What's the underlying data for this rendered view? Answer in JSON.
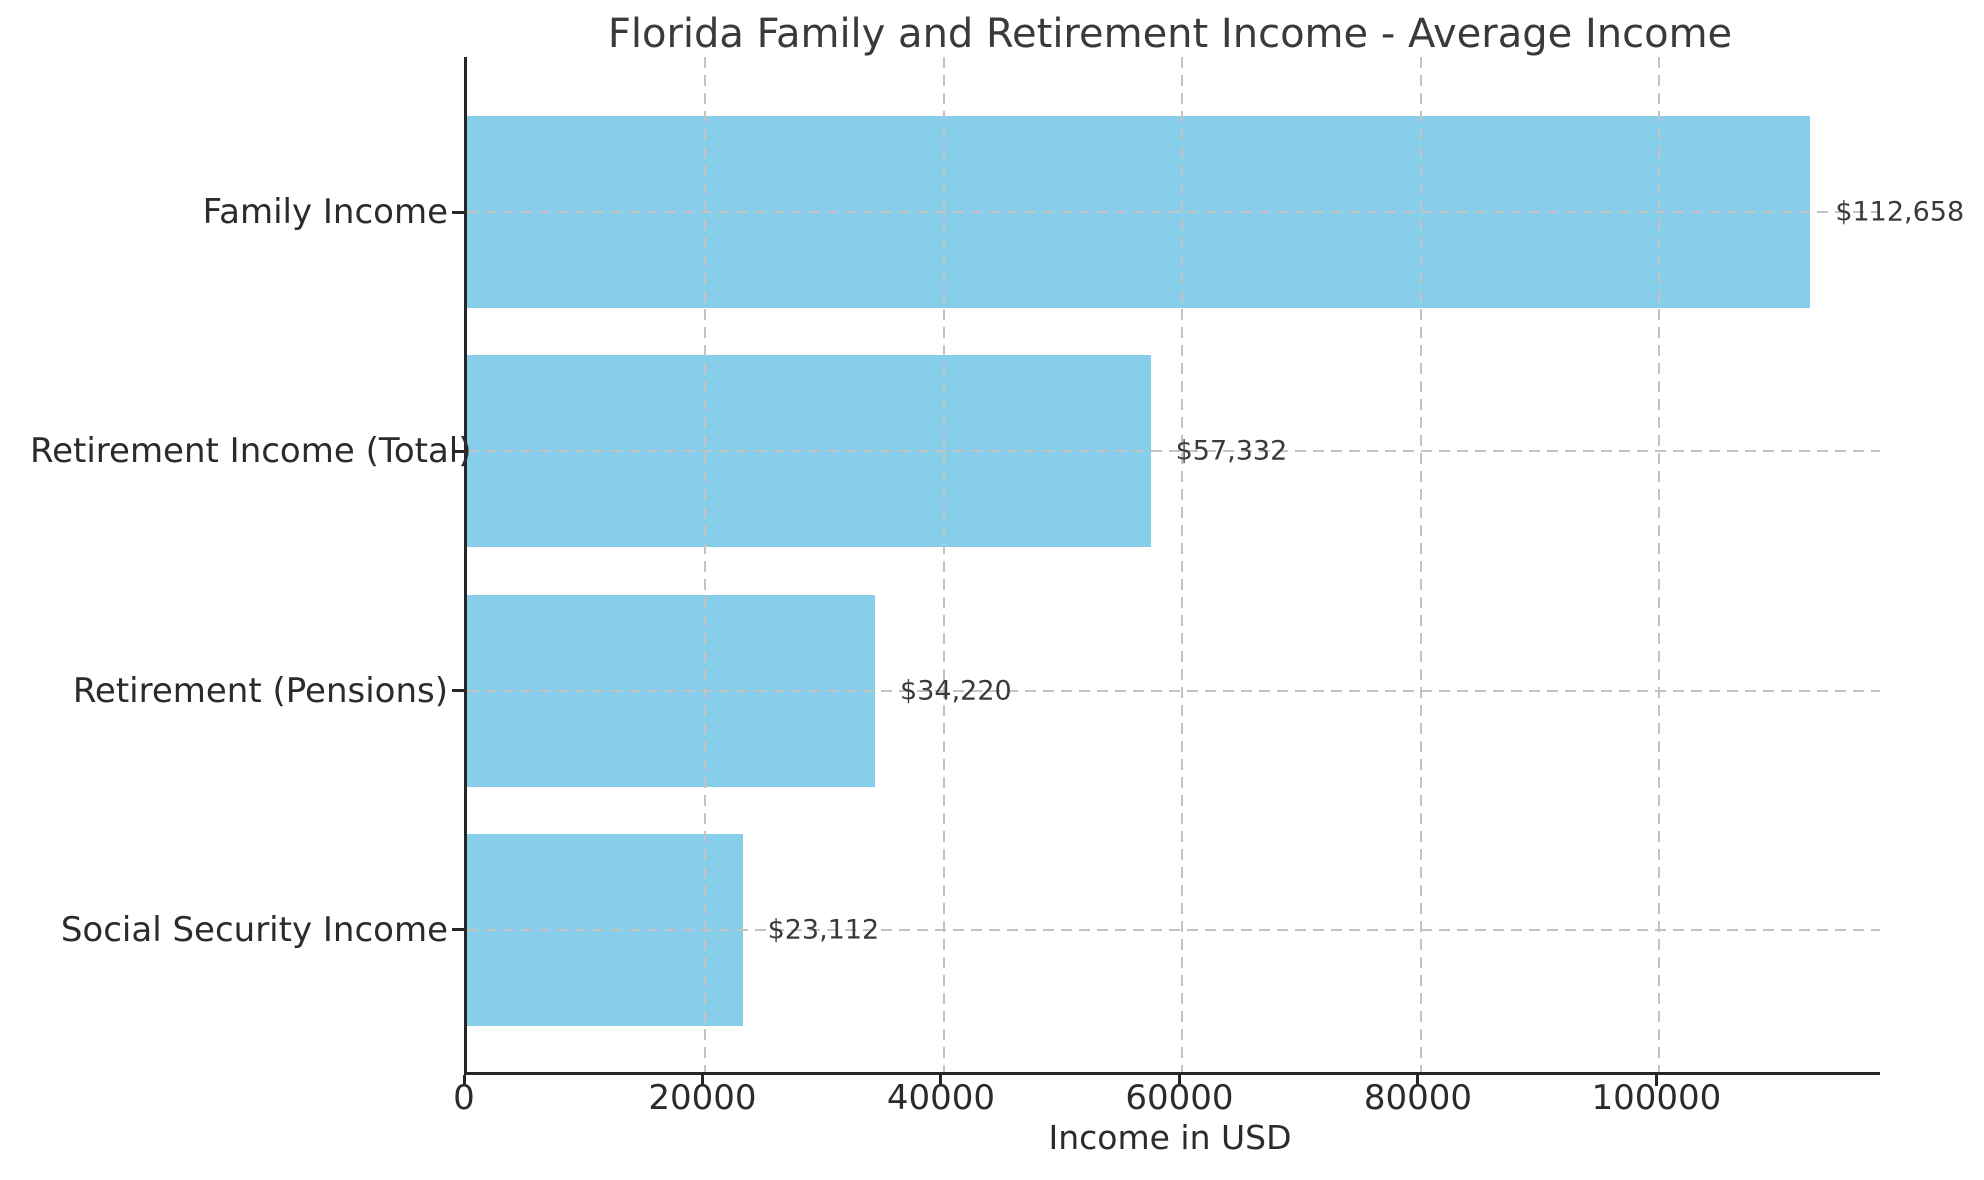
{
  "chart_data": {
    "type": "bar",
    "orientation": "horizontal",
    "title": "Florida Family and Retirement Income - Average Income",
    "xlabel": "Income in USD",
    "ylabel": "",
    "categories": [
      "Family Income",
      "Retirement Income (Total)",
      "Retirement (Pensions)",
      "Social Security Income"
    ],
    "values": [
      112658,
      57332,
      34220,
      23112
    ],
    "value_labels": [
      "$112,658",
      "$57,332",
      "$34,220",
      "$23,112"
    ],
    "x_ticks": [
      0,
      20000,
      40000,
      60000,
      80000,
      100000
    ],
    "x_tick_labels": [
      "0",
      "20000",
      "40000",
      "60000",
      "80000",
      "100000"
    ],
    "xlim": [
      0,
      118500
    ],
    "grid": "dashed",
    "legend": "none",
    "colors": {
      "bar": "#87CEEB",
      "grid": "#c3c3c3",
      "axis": "#262626",
      "text": "#2b2b2b",
      "value_text": "#3a3a3a",
      "background": "#ffffff"
    }
  }
}
